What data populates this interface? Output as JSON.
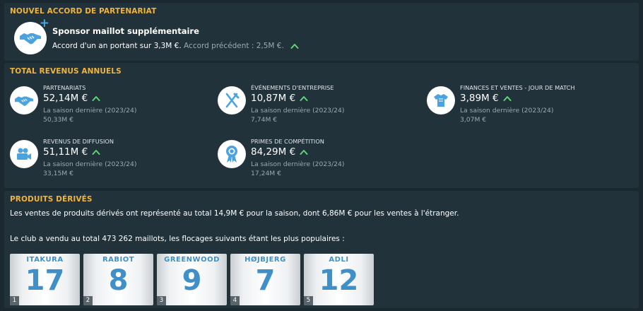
{
  "sponsor_panel": {
    "title": "NOUVEL ACCORD DE PARTENARIAT",
    "deal_title": "Sponsor maillot supplémentaire",
    "deal_text": "Accord d'un an portant sur 3,3M €.",
    "previous_text": "Accord précédent : 2,5M €.",
    "icon": "handshake-plus-icon"
  },
  "revenue_panel": {
    "title": "TOTAL REVENUS ANNUELS",
    "items": [
      {
        "label": "PARTENARIATS",
        "value": "52,14M €",
        "last_season_label": "La saison dernière (2023/24)",
        "last_season_value": "50,33M €",
        "icon": "handshake-icon",
        "trend": "up"
      },
      {
        "label": "ÉVÉNEMENTS D'ENTREPRISE",
        "value": "10,87M €",
        "last_season_label": "La saison dernière (2023/24)",
        "last_season_value": "7,74M €",
        "icon": "fork-knife-icon",
        "trend": "up"
      },
      {
        "label": "FINANCES ET VENTES - JOUR DE MATCH",
        "value": "3,89M €",
        "last_season_label": "La saison dernière (2023/24)",
        "last_season_value": "3,07M €",
        "icon": "shirt-icon",
        "trend": "up"
      },
      {
        "label": "REVENUS DE DIFFUSION",
        "value": "51,11M €",
        "last_season_label": "La saison dernière (2023/24)",
        "last_season_value": "33,15M €",
        "icon": "video-camera-icon",
        "trend": "up"
      },
      {
        "label": "PRIMES DE COMPÉTITION",
        "value": "84,29M €",
        "last_season_label": "La saison dernière (2023/24)",
        "last_season_value": "17,24M €",
        "icon": "award-ribbon-icon",
        "trend": "up"
      }
    ]
  },
  "merch_panel": {
    "title": "PRODUITS DÉRIVÉS",
    "sales_text": "Les ventes de produits dérivés ont représenté au total 14,9M € pour la saison, dont 6,86M € pour les ventes à l'étranger.",
    "shirts_text": "Le club a vendu au total 473 262 maillots, les flocages suivants étant les plus populaires :",
    "shirts": [
      {
        "rank": "1",
        "name": "ITAKURA",
        "number": "17"
      },
      {
        "rank": "2",
        "name": "RABIOT",
        "number": "8"
      },
      {
        "rank": "3",
        "name": "GREENWOOD",
        "number": "9"
      },
      {
        "rank": "4",
        "name": "HØJBJERG",
        "number": "7"
      },
      {
        "rank": "5",
        "name": "ADLI",
        "number": "12"
      }
    ]
  },
  "colors": {
    "background": "#1b2830",
    "panel": "#22323b",
    "accent_title": "#f0b33c",
    "icon_blue": "#4aa3df",
    "trend_up": "#5fd27a",
    "muted_text": "#9aa9b2"
  }
}
